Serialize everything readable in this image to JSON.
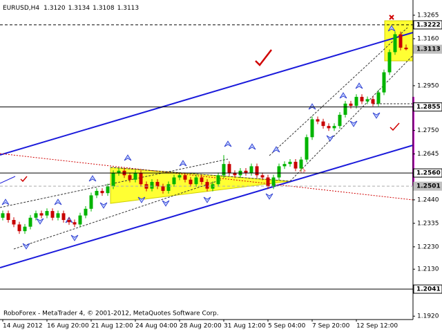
{
  "chart_data": {
    "type": "candlestick",
    "title": "EURUSD,H4",
    "last_bar_labels": [
      "1.3120",
      "1.3134",
      "1.3108",
      "1.3113"
    ],
    "footer": "RoboForex - MetaTrader 4, © 2001-2012, MetaQuotes Software Corp.",
    "up_color": "#00b400",
    "down_color": "#c80000",
    "ylim": [
      1.1905,
      1.3333
    ],
    "yticks": [
      {
        "value": 1.3265,
        "label": "1.3265"
      },
      {
        "value": 1.316,
        "label": "1.3160"
      },
      {
        "value": 1.295,
        "label": "1.2950"
      },
      {
        "value": 1.275,
        "label": "1.2750"
      },
      {
        "value": 1.2645,
        "label": "1.2645"
      },
      {
        "value": 1.244,
        "label": "1.2440"
      },
      {
        "value": 1.2335,
        "label": "1.2335"
      },
      {
        "value": 1.223,
        "label": "1.2230"
      },
      {
        "value": 1.213,
        "label": "1.2130"
      },
      {
        "value": 1.192,
        "label": "1.1920"
      }
    ],
    "levels": [
      {
        "value": 1.3222,
        "label": "1.3222",
        "style": "dashed",
        "highlight": false
      },
      {
        "value": 1.3113,
        "label": "1.3113",
        "style": "none",
        "highlight": true
      },
      {
        "value": 1.2855,
        "label": "1.2855",
        "style": "solid",
        "highlight": false
      },
      {
        "value": 1.256,
        "label": "1.2560",
        "style": "solid",
        "highlight": false
      },
      {
        "value": 1.2501,
        "label": "1.2501",
        "style": "dashed",
        "highlight": true
      },
      {
        "value": 1.2041,
        "label": "1.2041",
        "style": "solid",
        "highlight": false
      }
    ],
    "categories": [
      "14 Aug 2012",
      null,
      null,
      null,
      null,
      null,
      null,
      null,
      "16 Aug 20:00",
      null,
      null,
      null,
      null,
      null,
      null,
      null,
      "21 Aug 12:00",
      null,
      null,
      null,
      null,
      null,
      null,
      null,
      "24 Aug 04:00",
      null,
      null,
      null,
      null,
      null,
      null,
      null,
      "28 Aug 20:00",
      null,
      null,
      null,
      null,
      null,
      null,
      null,
      "31 Aug 12:00",
      null,
      null,
      null,
      null,
      null,
      null,
      null,
      "5 Sep 04:00",
      null,
      null,
      null,
      null,
      null,
      null,
      null,
      "7 Sep 20:00",
      null,
      null,
      null,
      null,
      null,
      null,
      null,
      "12 Sep 12:00",
      null,
      null,
      null,
      null,
      null,
      null,
      null,
      null,
      null
    ],
    "open": [
      1.236,
      1.238,
      1.235,
      1.233,
      1.23,
      1.232,
      1.236,
      1.238,
      1.237,
      1.239,
      1.236,
      1.238,
      1.235,
      1.234,
      1.233,
      1.237,
      1.24,
      1.246,
      1.248,
      1.247,
      1.25,
      1.256,
      1.257,
      1.255,
      1.253,
      1.256,
      1.251,
      1.249,
      1.252,
      1.25,
      1.248,
      1.251,
      1.254,
      1.255,
      1.253,
      1.251,
      1.254,
      1.252,
      1.249,
      1.251,
      1.255,
      1.26,
      1.256,
      1.255,
      1.257,
      1.256,
      1.259,
      1.255,
      1.254,
      1.25,
      1.254,
      1.259,
      1.26,
      1.261,
      1.258,
      1.262,
      1.272,
      1.28,
      1.279,
      1.277,
      1.276,
      1.277,
      1.282,
      1.287,
      1.286,
      1.29,
      1.288,
      1.289,
      1.287,
      1.292,
      1.301,
      1.31,
      1.318,
      1.312
    ],
    "high": [
      1.2392,
      1.2392,
      1.2362,
      1.2342,
      1.2332,
      1.2372,
      1.2392,
      1.2392,
      1.2402,
      1.2402,
      1.2392,
      1.2392,
      1.2362,
      1.2352,
      1.2382,
      1.2412,
      1.2472,
      1.2492,
      1.2492,
      1.2512,
      1.2572,
      1.2582,
      1.2582,
      1.2562,
      1.2572,
      1.2572,
      1.2522,
      1.2532,
      1.2532,
      1.2512,
      1.2522,
      1.2552,
      1.2562,
      1.2562,
      1.2542,
      1.2552,
      1.2552,
      1.2532,
      1.2522,
      1.2562,
      1.264,
      1.2612,
      1.2572,
      1.2582,
      1.2582,
      1.2602,
      1.2602,
      1.2562,
      1.2552,
      1.2552,
      1.2602,
      1.2612,
      1.2622,
      1.2622,
      1.2632,
      1.2732,
      1.2812,
      1.2812,
      1.2802,
      1.2782,
      1.2782,
      1.2832,
      1.2882,
      1.2882,
      1.2912,
      1.2912,
      1.2902,
      1.2902,
      1.2932,
      1.3022,
      1.3112,
      1.3192,
      1.3192,
      1.3134
    ],
    "low": [
      1.2348,
      1.2338,
      1.2318,
      1.2288,
      1.2288,
      1.2308,
      1.2348,
      1.2358,
      1.2358,
      1.2348,
      1.2348,
      1.2338,
      1.2328,
      1.2318,
      1.2318,
      1.2358,
      1.2388,
      1.2448,
      1.2458,
      1.2458,
      1.2488,
      1.2548,
      1.2538,
      1.2518,
      1.2518,
      1.2498,
      1.2478,
      1.2478,
      1.2488,
      1.2468,
      1.2468,
      1.2498,
      1.2528,
      1.2518,
      1.2498,
      1.2498,
      1.2508,
      1.2478,
      1.2478,
      1.2498,
      1.2538,
      1.2548,
      1.2538,
      1.2538,
      1.2548,
      1.2548,
      1.2538,
      1.2528,
      1.2488,
      1.2488,
      1.2528,
      1.2578,
      1.2588,
      1.2568,
      1.2568,
      1.2608,
      1.2708,
      1.2778,
      1.2758,
      1.2748,
      1.2748,
      1.2758,
      1.2808,
      1.2848,
      1.2848,
      1.2868,
      1.2868,
      1.2858,
      1.2858,
      1.2908,
      1.2998,
      1.3088,
      1.3108,
      1.3108
    ],
    "close": [
      1.238,
      1.235,
      1.233,
      1.23,
      1.232,
      1.236,
      1.238,
      1.237,
      1.239,
      1.236,
      1.238,
      1.235,
      1.234,
      1.233,
      1.237,
      1.24,
      1.246,
      1.248,
      1.247,
      1.25,
      1.256,
      1.257,
      1.255,
      1.253,
      1.256,
      1.251,
      1.249,
      1.252,
      1.25,
      1.248,
      1.251,
      1.254,
      1.255,
      1.253,
      1.251,
      1.254,
      1.252,
      1.249,
      1.251,
      1.255,
      1.26,
      1.256,
      1.255,
      1.257,
      1.256,
      1.259,
      1.255,
      1.254,
      1.25,
      1.254,
      1.259,
      1.26,
      1.261,
      1.258,
      1.262,
      1.272,
      1.28,
      1.279,
      1.277,
      1.276,
      1.277,
      1.282,
      1.287,
      1.286,
      1.29,
      1.288,
      1.289,
      1.287,
      1.292,
      1.301,
      1.31,
      1.318,
      1.312,
      1.3113
    ]
  }
}
